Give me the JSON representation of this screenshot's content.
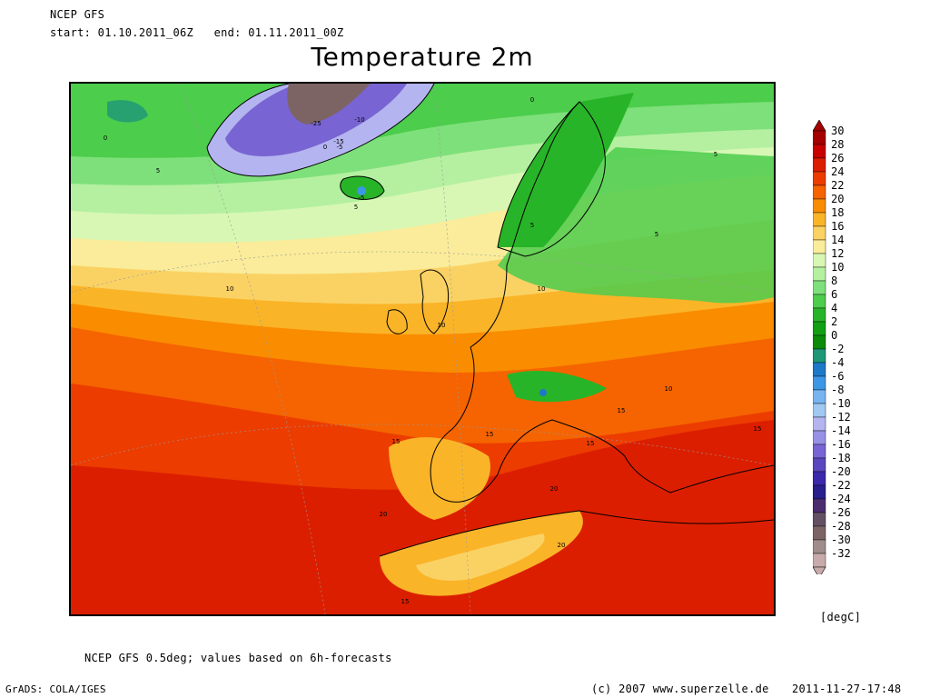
{
  "header": {
    "model": "NCEP GFS",
    "period": "start: 01.10.2011_06Z   end: 01.11.2011_00Z"
  },
  "title": "Temperature 2m",
  "footer": {
    "note": "NCEP GFS 0.5deg; values based on 6h-forecasts",
    "grads": "GrADS: COLA/IGES",
    "copyright": "(c) 2007 www.superzelle.de",
    "timestamp": "2011-11-27-17:48"
  },
  "legend": {
    "unit": "[degC]",
    "levels": [
      "30",
      "28",
      "26",
      "24",
      "22",
      "20",
      "18",
      "16",
      "14",
      "12",
      "10",
      "8",
      "6",
      "4",
      "2",
      "0",
      "-2",
      "-4",
      "-6",
      "-8",
      "-10",
      "-12",
      "-14",
      "-16",
      "-18",
      "-20",
      "-22",
      "-24",
      "-26",
      "-28",
      "-30",
      "-32"
    ],
    "colors": [
      "#a50000",
      "#c80000",
      "#dc1e00",
      "#ec3c00",
      "#f56400",
      "#fa8c00",
      "#fab428",
      "#fad264",
      "#faec9a",
      "#d8f7b4",
      "#b4f0a0",
      "#7ee07a",
      "#4ccd4c",
      "#28b428",
      "#12a012",
      "#0a8c0a",
      "#1e9678",
      "#1e78c8",
      "#3c96e6",
      "#78b4f0",
      "#a0c8f0",
      "#b4b4f0",
      "#9690e6",
      "#7864d2",
      "#5a46be",
      "#3c28aa",
      "#281e8c",
      "#4b2d6e",
      "#645064",
      "#7d6464",
      "#a08c8c",
      "#c8aaaa"
    ]
  },
  "contour_labels": [
    "0",
    "-25",
    "-10",
    "-15",
    "-5",
    "0",
    "5",
    "0",
    "5",
    "-5",
    "5",
    "5",
    "10",
    "10",
    "10",
    "10",
    "15",
    "15",
    "15",
    "15",
    "15",
    "20",
    "20",
    "20",
    "15",
    "5"
  ]
}
